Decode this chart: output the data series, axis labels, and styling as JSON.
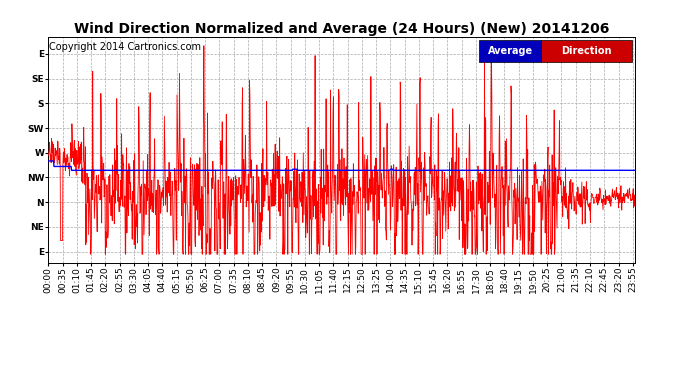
{
  "title": "Wind Direction Normalized and Average (24 Hours) (New) 20141206",
  "copyright": "Copyright 2014 Cartronics.com",
  "legend_avg_label": "Average",
  "legend_dir_label": "Direction",
  "legend_avg_color": "#0000ff",
  "legend_dir_color": "#ff0000",
  "ytick_labels": [
    "E",
    "NE",
    "N",
    "NW",
    "W",
    "SW",
    "S",
    "SE",
    "E"
  ],
  "ytick_values": [
    0,
    45,
    90,
    135,
    180,
    225,
    270,
    315,
    360
  ],
  "ylim": [
    -20,
    390
  ],
  "bg_color": "#ffffff",
  "grid_color": "#aaaaaa",
  "plot_bg": "#ffffff",
  "title_fontsize": 10,
  "copyright_fontsize": 7,
  "tick_fontsize": 6.5,
  "n_points": 1441
}
